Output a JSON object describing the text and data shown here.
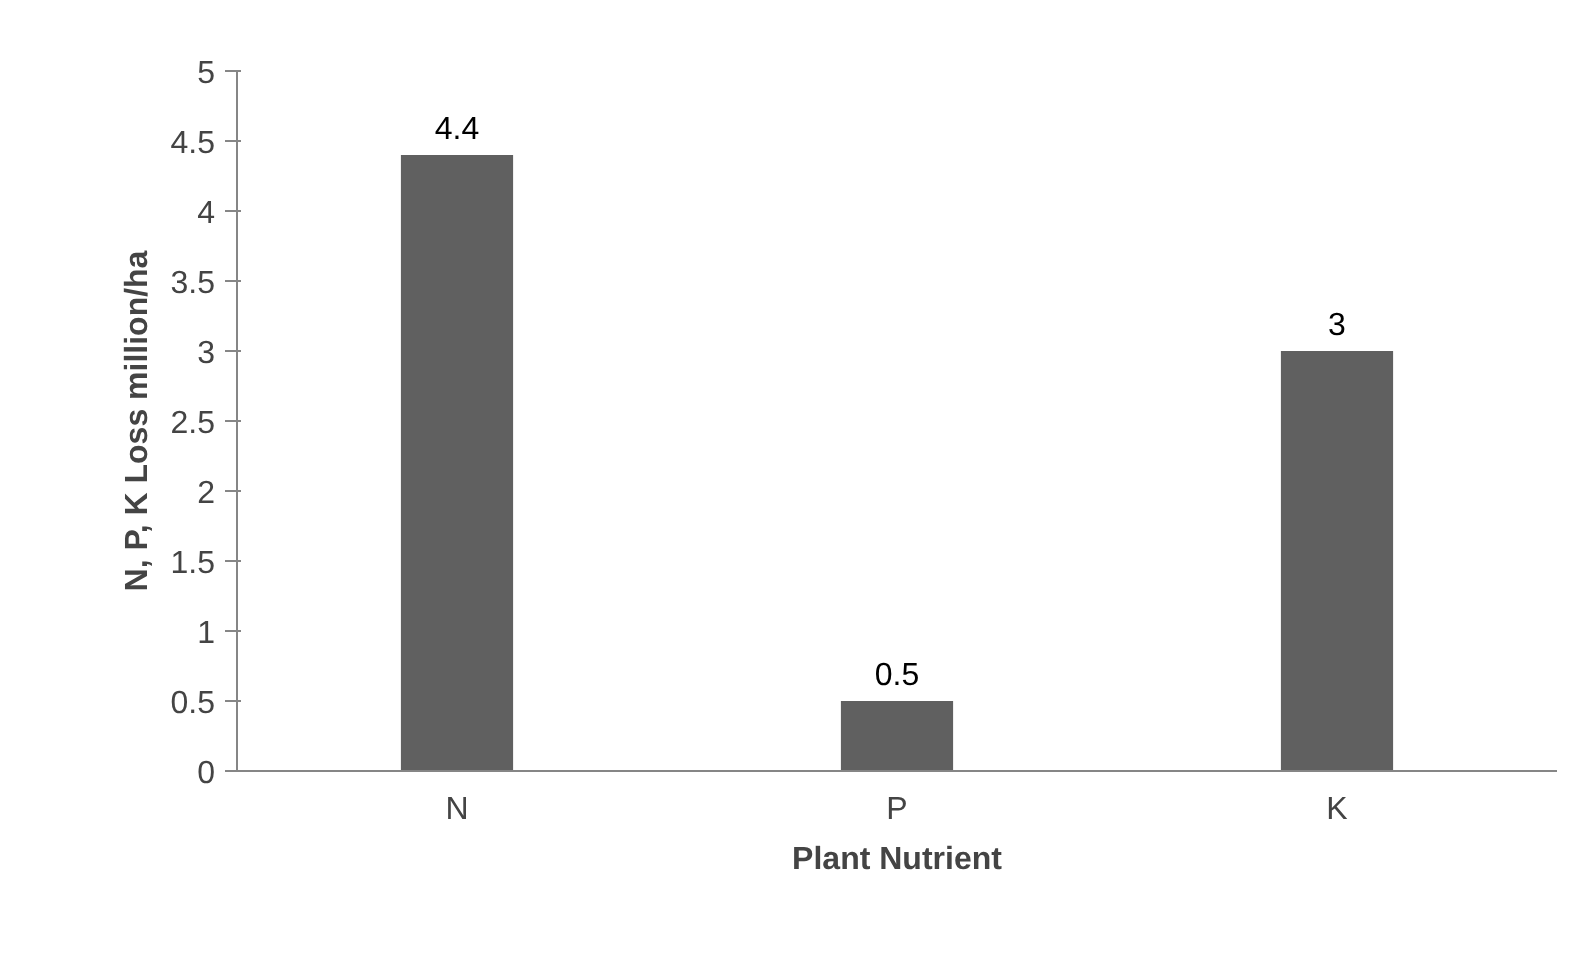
{
  "chart_data": {
    "type": "bar",
    "categories": [
      "N",
      "P",
      "K"
    ],
    "values": [
      4.4,
      0.5,
      3
    ],
    "color": "#606060",
    "xlabel": "Plant Nutrient",
    "ylabel": "N, P, K Loss million/ha",
    "ylim": [
      0,
      5
    ],
    "yticks": [
      0,
      0.5,
      1,
      1.5,
      2,
      2.5,
      3,
      3.5,
      4,
      4.5,
      5
    ],
    "data_labels": true,
    "grid": false
  }
}
